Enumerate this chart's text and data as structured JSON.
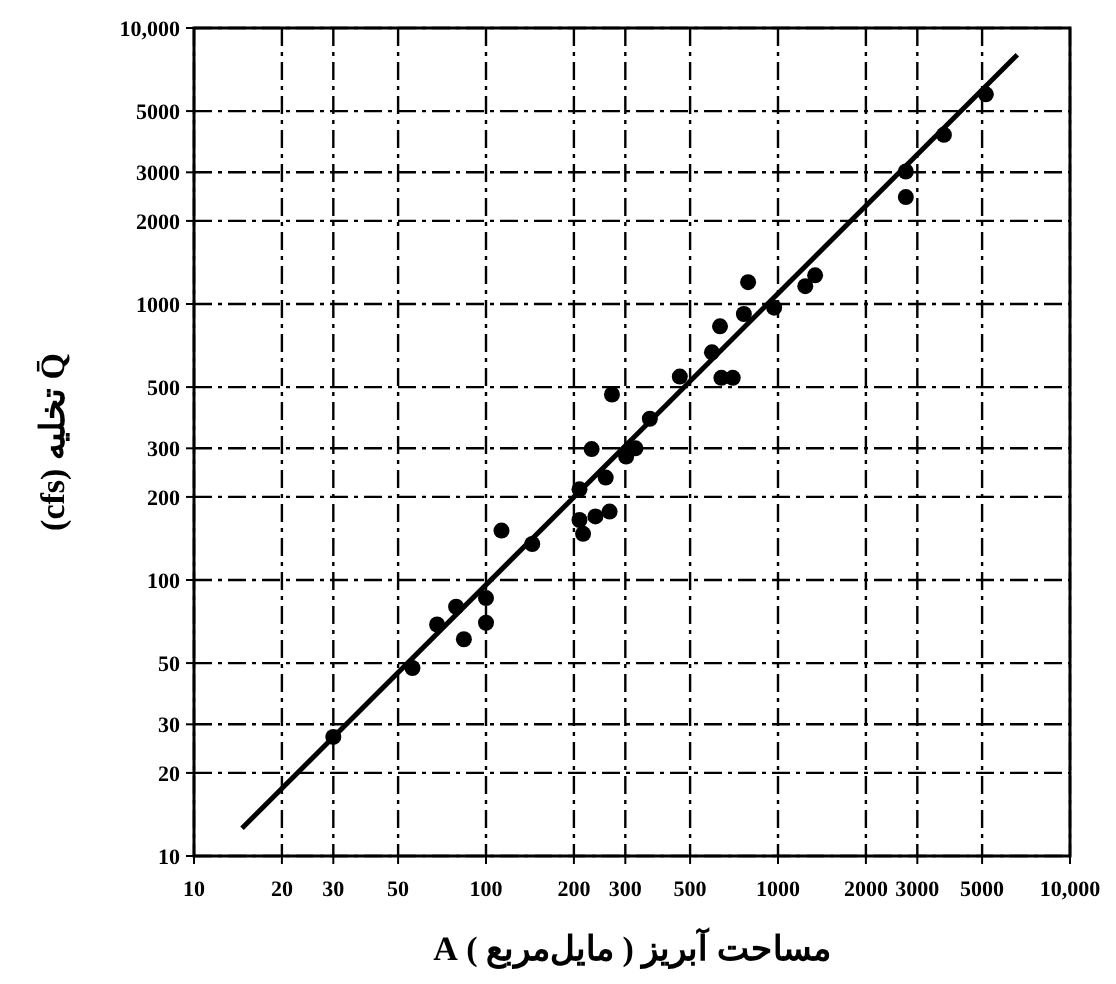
{
  "chart_data": {
    "type": "scatter",
    "xlabel": "مساحت آبریز ( مایل‌مربع ) A",
    "ylabel": "Q̄ تخلیه (cfs)",
    "log": "xy",
    "xlim": [
      10,
      10000
    ],
    "ylim": [
      10,
      10000
    ],
    "xticks": [
      10,
      20,
      30,
      50,
      100,
      200,
      300,
      500,
      1000,
      2000,
      3000,
      5000,
      {
        "value": 10000,
        "label": "10,000"
      }
    ],
    "yticks": [
      10,
      20,
      30,
      50,
      100,
      200,
      300,
      500,
      1000,
      2000,
      3000,
      5000,
      {
        "value": 10000,
        "label": "10,000"
      }
    ],
    "grid": true,
    "line_style": "solid",
    "series": [
      {
        "marker": "circle",
        "color": "#000000",
        "x": [
          30,
          56,
          68,
          79,
          84,
          100,
          100,
          113,
          144,
          209,
          209,
          215,
          237,
          265,
          257,
          230,
          270,
          302,
          325,
          364,
          461,
          594,
          640,
          700,
          633,
          764,
          790,
          970,
          1240,
          1340,
          2740,
          2740,
          3700,
          5150
        ],
        "values": [
          27,
          48,
          69,
          80,
          61,
          86,
          70,
          151,
          135,
          213,
          165,
          147,
          170,
          177,
          235,
          298,
          470,
          280,
          300,
          384,
          546,
          668,
          540,
          540,
          830,
          920,
          1200,
          970,
          1160,
          1270,
          3020,
          2440,
          4100,
          5750
        ]
      },
      {
        "type": "line",
        "marker": "none",
        "color": "#000000",
        "x": [
          14.6,
          6600
        ],
        "values": [
          12.6,
          8000
        ]
      }
    ]
  }
}
